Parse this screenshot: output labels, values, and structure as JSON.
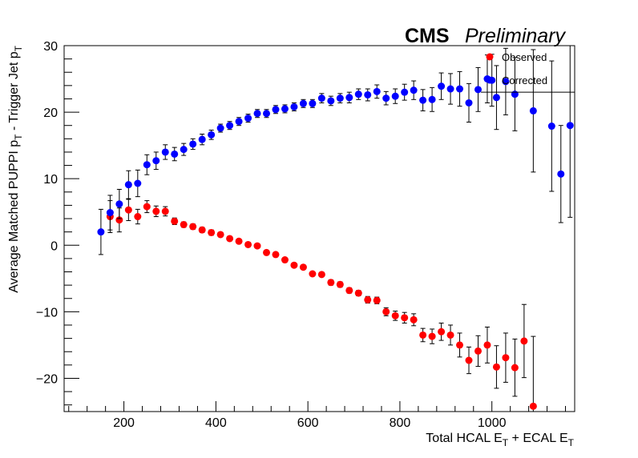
{
  "chart_data": {
    "type": "scatter",
    "title_bold": "CMS",
    "title_italic": "Preliminary",
    "xlabel": {
      "main": "Total HCAL E",
      "sub1": "T",
      "mid": " + ECAL E",
      "sub2": "T"
    },
    "ylabel": {
      "p1": "Average Matched PUPPI p",
      "s1": "T",
      "p2": " - Trigger Jet p",
      "s2": "T"
    },
    "xlim": [
      70,
      1180
    ],
    "ylim": [
      -25,
      30
    ],
    "x_ticks": [
      200,
      400,
      600,
      800,
      1000
    ],
    "y_ticks": [
      -20,
      -10,
      0,
      10,
      20,
      30
    ],
    "legend_position": "top-right",
    "series": [
      {
        "name": "Observed",
        "color": "#ff0000",
        "points": [
          {
            "x": 170,
            "y": 4.3,
            "err": 2.4
          },
          {
            "x": 190,
            "y": 3.8,
            "err": 1.8
          },
          {
            "x": 210,
            "y": 5.3,
            "err": 1.6
          },
          {
            "x": 230,
            "y": 4.3,
            "err": 1.1
          },
          {
            "x": 250,
            "y": 5.8,
            "err": 0.9
          },
          {
            "x": 270,
            "y": 5.1,
            "err": 0.8
          },
          {
            "x": 290,
            "y": 5.1,
            "err": 0.7
          },
          {
            "x": 310,
            "y": 3.6,
            "err": 0.5
          },
          {
            "x": 330,
            "y": 3.1,
            "err": 0.4
          },
          {
            "x": 350,
            "y": 2.8,
            "err": 0.4
          },
          {
            "x": 370,
            "y": 2.3,
            "err": 0.4
          },
          {
            "x": 390,
            "y": 1.9,
            "err": 0.4
          },
          {
            "x": 410,
            "y": 1.6,
            "err": 0.3
          },
          {
            "x": 430,
            "y": 1.0,
            "err": 0.3
          },
          {
            "x": 450,
            "y": 0.6,
            "err": 0.3
          },
          {
            "x": 470,
            "y": 0.1,
            "err": 0.3
          },
          {
            "x": 490,
            "y": -0.1,
            "err": 0.3
          },
          {
            "x": 510,
            "y": -1.1,
            "err": 0.3
          },
          {
            "x": 530,
            "y": -1.4,
            "err": 0.3
          },
          {
            "x": 550,
            "y": -2.2,
            "err": 0.3
          },
          {
            "x": 570,
            "y": -3.0,
            "err": 0.3
          },
          {
            "x": 590,
            "y": -3.3,
            "err": 0.3
          },
          {
            "x": 610,
            "y": -4.3,
            "err": 0.3
          },
          {
            "x": 630,
            "y": -4.4,
            "err": 0.3
          },
          {
            "x": 650,
            "y": -5.6,
            "err": 0.4
          },
          {
            "x": 670,
            "y": -5.9,
            "err": 0.4
          },
          {
            "x": 690,
            "y": -6.8,
            "err": 0.4
          },
          {
            "x": 710,
            "y": -7.2,
            "err": 0.4
          },
          {
            "x": 730,
            "y": -8.2,
            "err": 0.5
          },
          {
            "x": 750,
            "y": -8.3,
            "err": 0.5
          },
          {
            "x": 770,
            "y": -10.0,
            "err": 0.6
          },
          {
            "x": 790,
            "y": -10.6,
            "err": 0.7
          },
          {
            "x": 810,
            "y": -10.9,
            "err": 0.8
          },
          {
            "x": 830,
            "y": -11.2,
            "err": 0.9
          },
          {
            "x": 850,
            "y": -13.5,
            "err": 1.0
          },
          {
            "x": 870,
            "y": -13.7,
            "err": 1.1
          },
          {
            "x": 890,
            "y": -13.0,
            "err": 1.3
          },
          {
            "x": 910,
            "y": -13.5,
            "err": 1.5
          },
          {
            "x": 930,
            "y": -15.0,
            "err": 1.8
          },
          {
            "x": 950,
            "y": -17.3,
            "err": 2.0
          },
          {
            "x": 970,
            "y": -15.9,
            "err": 2.3
          },
          {
            "x": 990,
            "y": -15.0,
            "err": 2.7
          },
          {
            "x": 1010,
            "y": -18.3,
            "err": 3.2
          },
          {
            "x": 1030,
            "y": -16.9,
            "err": 3.7
          },
          {
            "x": 1050,
            "y": -18.4,
            "err": 4.3
          },
          {
            "x": 1070,
            "y": -14.4,
            "err": 5.5
          },
          {
            "x": 1090,
            "y": -24.2,
            "err": 10.5
          }
        ]
      },
      {
        "name": "Corrected",
        "color": "#0000ff",
        "points": [
          {
            "x": 150,
            "y": 2.0,
            "err": 3.4
          },
          {
            "x": 170,
            "y": 4.9,
            "err": 2.6
          },
          {
            "x": 190,
            "y": 6.2,
            "err": 2.2
          },
          {
            "x": 210,
            "y": 9.1,
            "err": 2.1
          },
          {
            "x": 230,
            "y": 9.3,
            "err": 2.0
          },
          {
            "x": 250,
            "y": 12.1,
            "err": 1.5
          },
          {
            "x": 270,
            "y": 12.7,
            "err": 1.3
          },
          {
            "x": 290,
            "y": 14.0,
            "err": 1.1
          },
          {
            "x": 310,
            "y": 13.7,
            "err": 1.0
          },
          {
            "x": 330,
            "y": 14.4,
            "err": 0.9
          },
          {
            "x": 350,
            "y": 15.2,
            "err": 0.8
          },
          {
            "x": 370,
            "y": 15.9,
            "err": 0.8
          },
          {
            "x": 390,
            "y": 16.6,
            "err": 0.7
          },
          {
            "x": 410,
            "y": 17.6,
            "err": 0.6
          },
          {
            "x": 430,
            "y": 18.0,
            "err": 0.6
          },
          {
            "x": 450,
            "y": 18.6,
            "err": 0.6
          },
          {
            "x": 470,
            "y": 19.1,
            "err": 0.6
          },
          {
            "x": 490,
            "y": 19.8,
            "err": 0.6
          },
          {
            "x": 510,
            "y": 19.8,
            "err": 0.6
          },
          {
            "x": 530,
            "y": 20.4,
            "err": 0.6
          },
          {
            "x": 550,
            "y": 20.5,
            "err": 0.6
          },
          {
            "x": 570,
            "y": 20.8,
            "err": 0.6
          },
          {
            "x": 590,
            "y": 21.3,
            "err": 0.6
          },
          {
            "x": 610,
            "y": 21.3,
            "err": 0.6
          },
          {
            "x": 630,
            "y": 22.1,
            "err": 0.7
          },
          {
            "x": 650,
            "y": 21.7,
            "err": 0.7
          },
          {
            "x": 670,
            "y": 22.1,
            "err": 0.7
          },
          {
            "x": 690,
            "y": 22.2,
            "err": 0.8
          },
          {
            "x": 710,
            "y": 22.7,
            "err": 0.8
          },
          {
            "x": 730,
            "y": 22.6,
            "err": 0.9
          },
          {
            "x": 750,
            "y": 23.1,
            "err": 1.0
          },
          {
            "x": 770,
            "y": 22.1,
            "err": 1.0
          },
          {
            "x": 790,
            "y": 22.4,
            "err": 1.1
          },
          {
            "x": 810,
            "y": 23.0,
            "err": 1.2
          },
          {
            "x": 830,
            "y": 23.3,
            "err": 1.4
          },
          {
            "x": 850,
            "y": 21.8,
            "err": 1.6
          },
          {
            "x": 870,
            "y": 21.9,
            "err": 1.8
          },
          {
            "x": 890,
            "y": 23.9,
            "err": 2.0
          },
          {
            "x": 910,
            "y": 23.5,
            "err": 2.3
          },
          {
            "x": 930,
            "y": 23.5,
            "err": 2.6
          },
          {
            "x": 950,
            "y": 21.4,
            "err": 2.9
          },
          {
            "x": 970,
            "y": 23.4,
            "err": 3.3
          },
          {
            "x": 990,
            "y": 25.0,
            "err": 3.6
          },
          {
            "x": 1000,
            "y": 24.8,
            "err": 3.9
          },
          {
            "x": 1010,
            "y": 22.2,
            "err": 4.8
          },
          {
            "x": 1030,
            "y": 24.6,
            "err": 5.0
          },
          {
            "x": 1050,
            "y": 22.7,
            "err": 5.5
          },
          {
            "x": 1090,
            "y": 20.2,
            "err": 9.2
          },
          {
            "x": 1130,
            "y": 17.9,
            "err": 9.8
          },
          {
            "x": 1150,
            "y": 10.7,
            "err": 7.3
          },
          {
            "x": 1170,
            "y": 18.0,
            "err": 13.8
          }
        ]
      }
    ]
  }
}
